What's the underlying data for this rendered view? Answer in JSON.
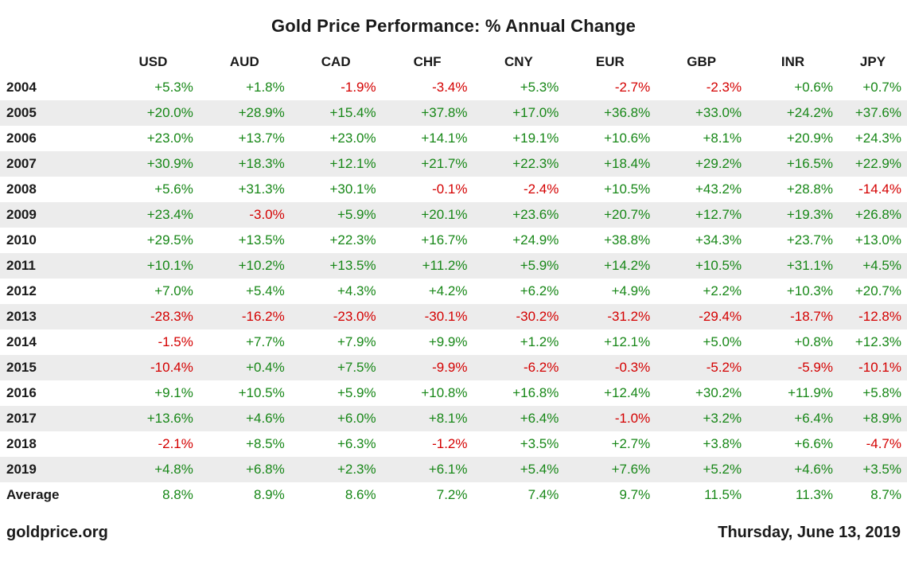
{
  "title": "Gold Price Performance: % Annual Change",
  "footer": {
    "source": "goldprice.org",
    "date": "Thursday, June 13, 2019"
  },
  "colors": {
    "positive": "#178717",
    "negative": "#d40000",
    "row_alt": "#ececec"
  },
  "chart_data": {
    "type": "table",
    "title": "Gold Price Performance: % Annual Change",
    "columns": [
      "USD",
      "AUD",
      "CAD",
      "CHF",
      "CNY",
      "EUR",
      "GBP",
      "INR",
      "JPY"
    ],
    "rows": [
      {
        "label": "2004",
        "values": [
          "+5.3%",
          "+1.8%",
          "-1.9%",
          "-3.4%",
          "+5.3%",
          "-2.7%",
          "-2.3%",
          "+0.6%",
          "+0.7%"
        ]
      },
      {
        "label": "2005",
        "values": [
          "+20.0%",
          "+28.9%",
          "+15.4%",
          "+37.8%",
          "+17.0%",
          "+36.8%",
          "+33.0%",
          "+24.2%",
          "+37.6%"
        ]
      },
      {
        "label": "2006",
        "values": [
          "+23.0%",
          "+13.7%",
          "+23.0%",
          "+14.1%",
          "+19.1%",
          "+10.6%",
          "+8.1%",
          "+20.9%",
          "+24.3%"
        ]
      },
      {
        "label": "2007",
        "values": [
          "+30.9%",
          "+18.3%",
          "+12.1%",
          "+21.7%",
          "+22.3%",
          "+18.4%",
          "+29.2%",
          "+16.5%",
          "+22.9%"
        ]
      },
      {
        "label": "2008",
        "values": [
          "+5.6%",
          "+31.3%",
          "+30.1%",
          "-0.1%",
          "-2.4%",
          "+10.5%",
          "+43.2%",
          "+28.8%",
          "-14.4%"
        ]
      },
      {
        "label": "2009",
        "values": [
          "+23.4%",
          "-3.0%",
          "+5.9%",
          "+20.1%",
          "+23.6%",
          "+20.7%",
          "+12.7%",
          "+19.3%",
          "+26.8%"
        ]
      },
      {
        "label": "2010",
        "values": [
          "+29.5%",
          "+13.5%",
          "+22.3%",
          "+16.7%",
          "+24.9%",
          "+38.8%",
          "+34.3%",
          "+23.7%",
          "+13.0%"
        ]
      },
      {
        "label": "2011",
        "values": [
          "+10.1%",
          "+10.2%",
          "+13.5%",
          "+11.2%",
          "+5.9%",
          "+14.2%",
          "+10.5%",
          "+31.1%",
          "+4.5%"
        ]
      },
      {
        "label": "2012",
        "values": [
          "+7.0%",
          "+5.4%",
          "+4.3%",
          "+4.2%",
          "+6.2%",
          "+4.9%",
          "+2.2%",
          "+10.3%",
          "+20.7%"
        ]
      },
      {
        "label": "2013",
        "values": [
          "-28.3%",
          "-16.2%",
          "-23.0%",
          "-30.1%",
          "-30.2%",
          "-31.2%",
          "-29.4%",
          "-18.7%",
          "-12.8%"
        ]
      },
      {
        "label": "2014",
        "values": [
          "-1.5%",
          "+7.7%",
          "+7.9%",
          "+9.9%",
          "+1.2%",
          "+12.1%",
          "+5.0%",
          "+0.8%",
          "+12.3%"
        ]
      },
      {
        "label": "2015",
        "values": [
          "-10.4%",
          "+0.4%",
          "+7.5%",
          "-9.9%",
          "-6.2%",
          "-0.3%",
          "-5.2%",
          "-5.9%",
          "-10.1%"
        ]
      },
      {
        "label": "2016",
        "values": [
          "+9.1%",
          "+10.5%",
          "+5.9%",
          "+10.8%",
          "+16.8%",
          "+12.4%",
          "+30.2%",
          "+11.9%",
          "+5.8%"
        ]
      },
      {
        "label": "2017",
        "values": [
          "+13.6%",
          "+4.6%",
          "+6.0%",
          "+8.1%",
          "+6.4%",
          "-1.0%",
          "+3.2%",
          "+6.4%",
          "+8.9%"
        ]
      },
      {
        "label": "2018",
        "values": [
          "-2.1%",
          "+8.5%",
          "+6.3%",
          "-1.2%",
          "+3.5%",
          "+2.7%",
          "+3.8%",
          "+6.6%",
          "-4.7%"
        ]
      },
      {
        "label": "2019",
        "values": [
          "+4.8%",
          "+6.8%",
          "+2.3%",
          "+6.1%",
          "+5.4%",
          "+7.6%",
          "+5.2%",
          "+4.6%",
          "+3.5%"
        ]
      },
      {
        "label": "Average",
        "values": [
          "8.8%",
          "8.9%",
          "8.6%",
          "7.2%",
          "7.4%",
          "9.7%",
          "11.5%",
          "11.3%",
          "8.7%"
        ]
      }
    ]
  }
}
